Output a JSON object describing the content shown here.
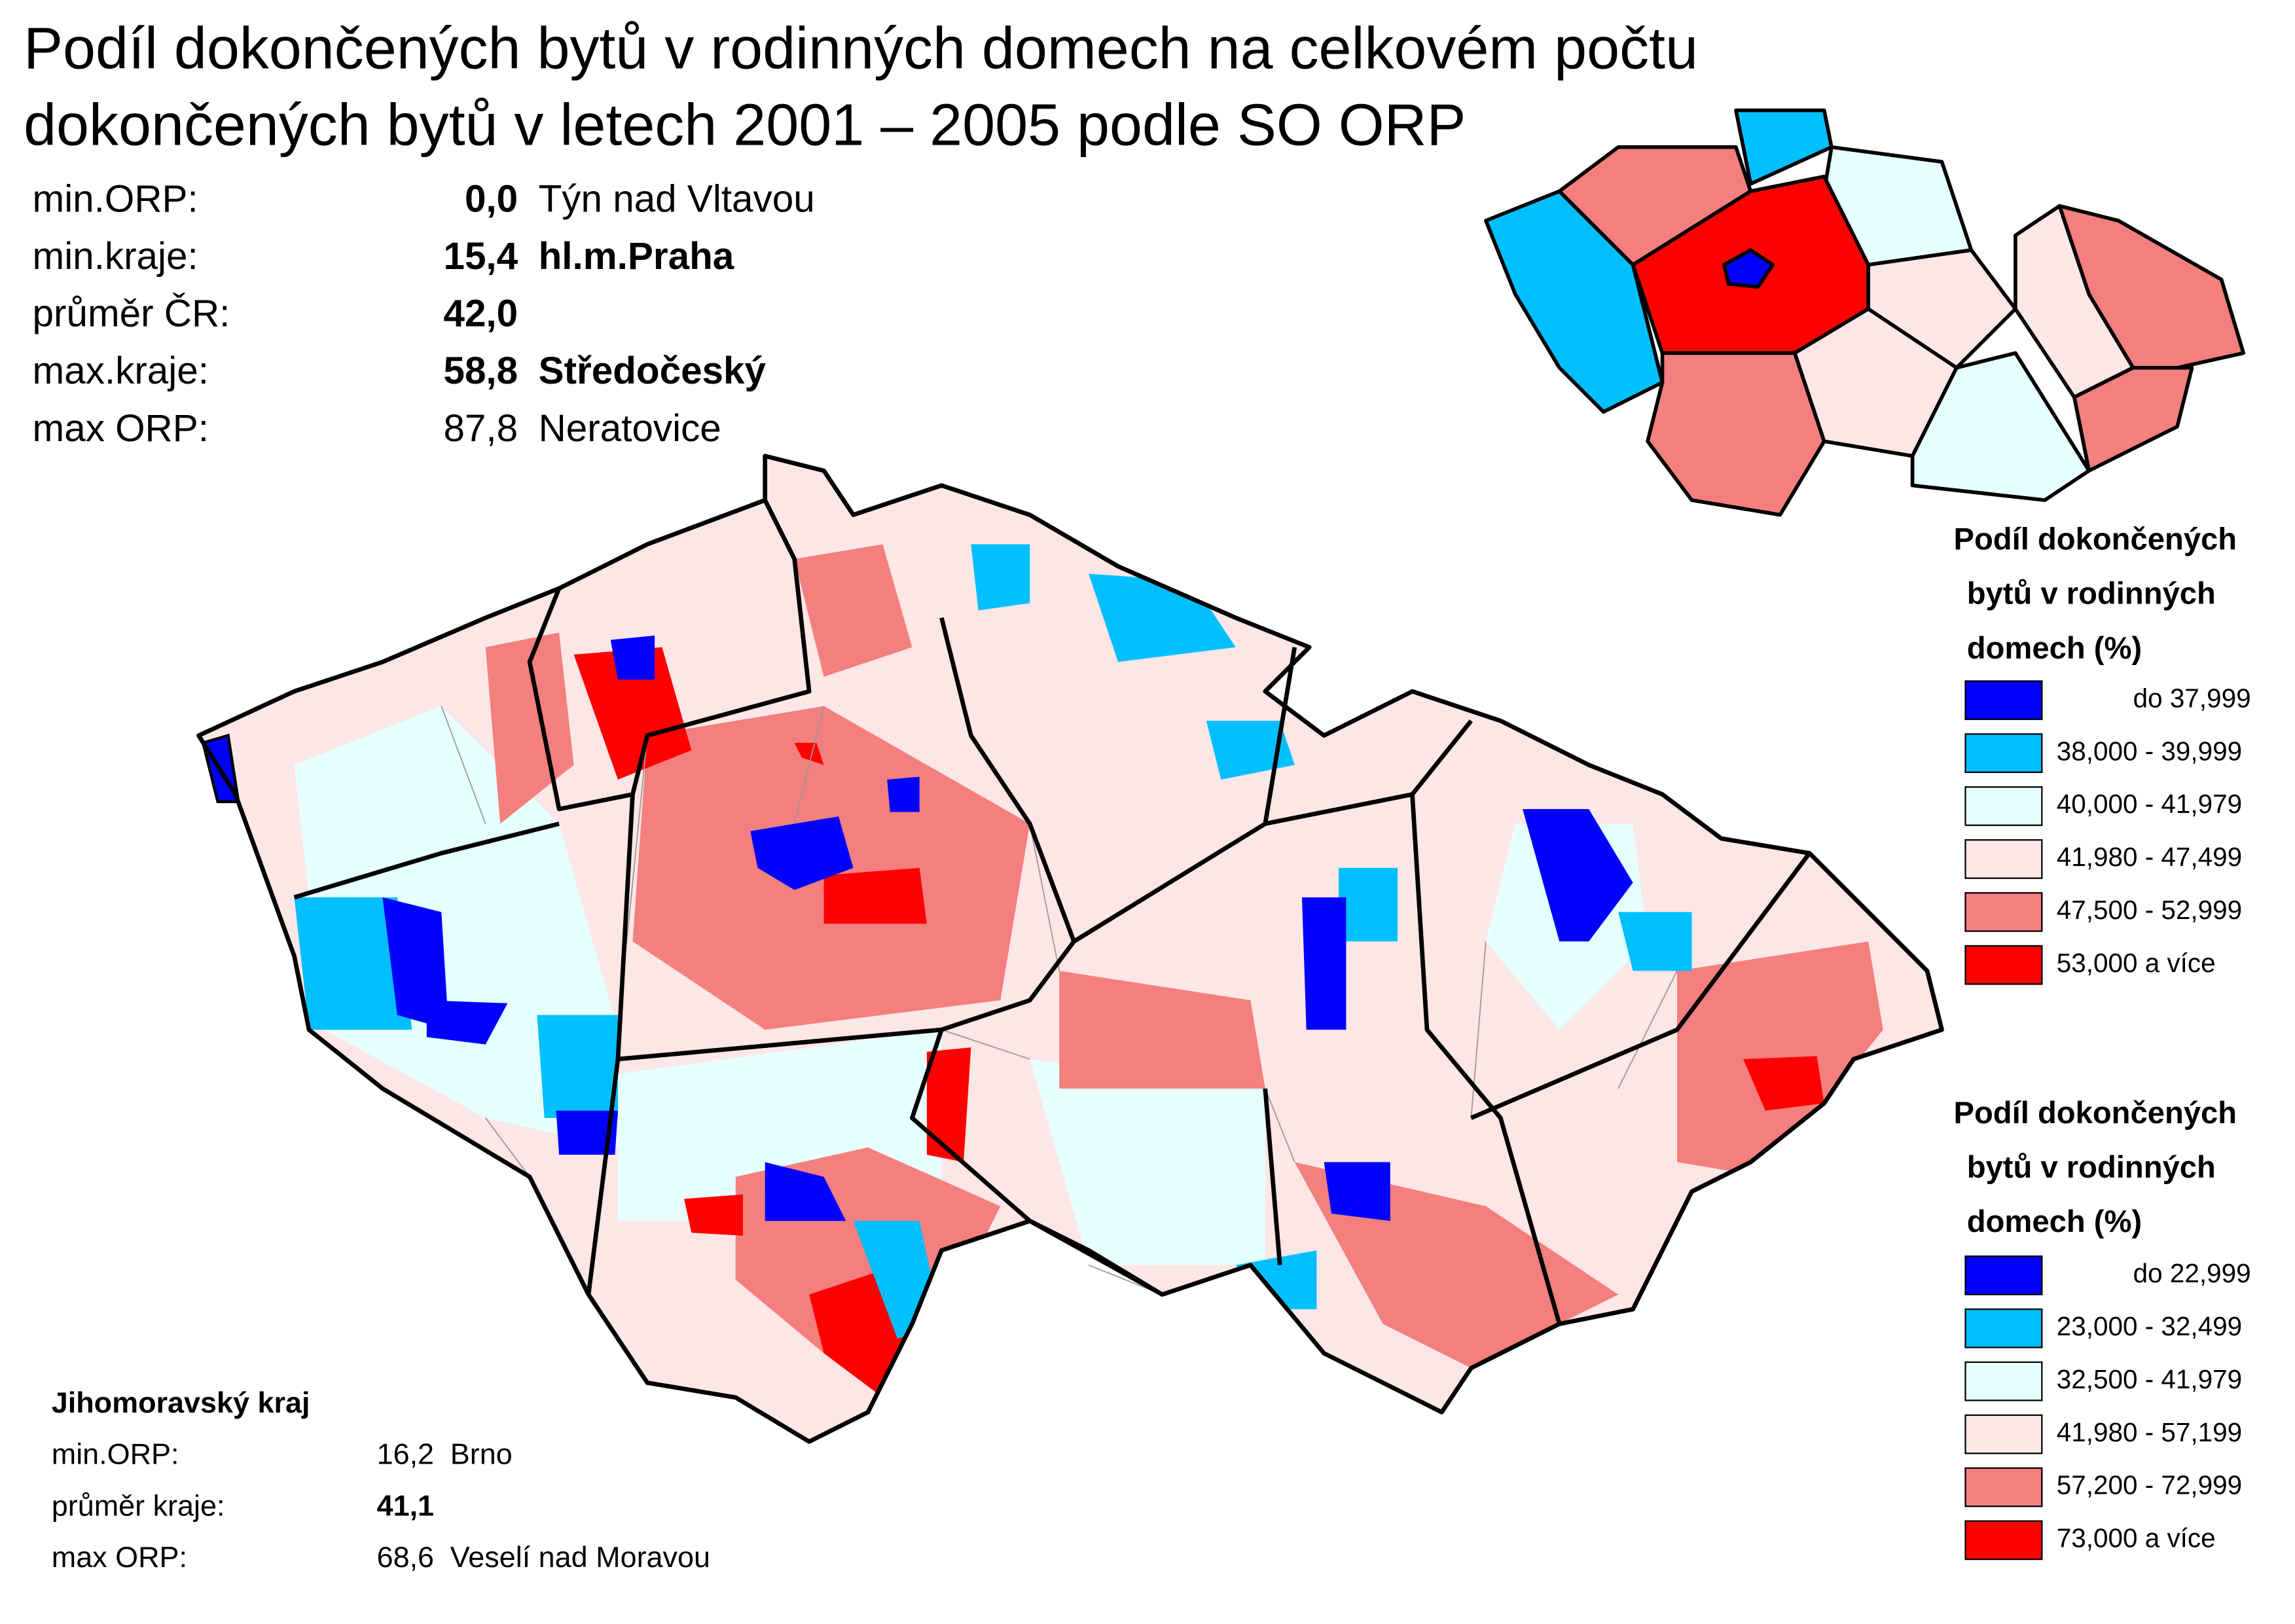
{
  "title_lines": [
    "Podíl dokončených bytů v rodinných domech na celkovém počtu",
    "dokončených bytů v letech 2001 – 2005 podle SO ORP"
  ],
  "summary": [
    {
      "label": "min.ORP:",
      "value": "0,0",
      "name": "Týn nad Vltavou"
    },
    {
      "label": "min.kraje:",
      "value": "15,4",
      "name": "hl.m.Praha"
    },
    {
      "label": "průměr ČR:",
      "value": "42,0"
    },
    {
      "label": "max.kraje:",
      "value": "58,8",
      "name": "Středočeský"
    },
    {
      "label": "max ORP:",
      "value": "87,8",
      "name": "Neratovice"
    }
  ],
  "legend_country": {
    "title_lines": [
      "Podíl dokončených",
      "bytů v rodinných",
      "domech (%)"
    ],
    "items": [
      {
        "label": "do 37,999",
        "color": "#0000ff"
      },
      {
        "label": "38,000 - 39,999",
        "color": "#00bfff"
      },
      {
        "label": "40,000 - 41,979",
        "color": "#e6ffff"
      },
      {
        "label": "41,980 - 47,499",
        "color": "#fde6e6"
      },
      {
        "label": "47,500 - 52,999",
        "color": "#f47f7f"
      },
      {
        "label": "53,000 a více",
        "color": "#ff0000"
      }
    ]
  },
  "legend_orp": {
    "title_lines": [
      "Podíl dokončených",
      "bytů v rodinných",
      "domech (%)"
    ],
    "items": [
      {
        "label": "do 22,999",
        "color": "#0000ff"
      },
      {
        "label": "23,000 - 32,499",
        "color": "#00bfff"
      },
      {
        "label": "32,500 - 41,979",
        "color": "#e6ffff"
      },
      {
        "label": "41,980 - 57,199",
        "color": "#fde6e6"
      },
      {
        "label": "57,200 - 72,999",
        "color": "#f47f7f"
      },
      {
        "label": "73,000 a více",
        "color": "#ff0000"
      }
    ]
  },
  "region_box": {
    "title": "Jihomoravský kraj",
    "rows": [
      {
        "label": "min.ORP:",
        "value": "16,2",
        "name": "Brno"
      },
      {
        "label": "průměr kraje:",
        "value": "41,1"
      },
      {
        "label": "max ORP:",
        "value": "68,6",
        "name": "Veselí nad Moravou"
      }
    ]
  }
}
